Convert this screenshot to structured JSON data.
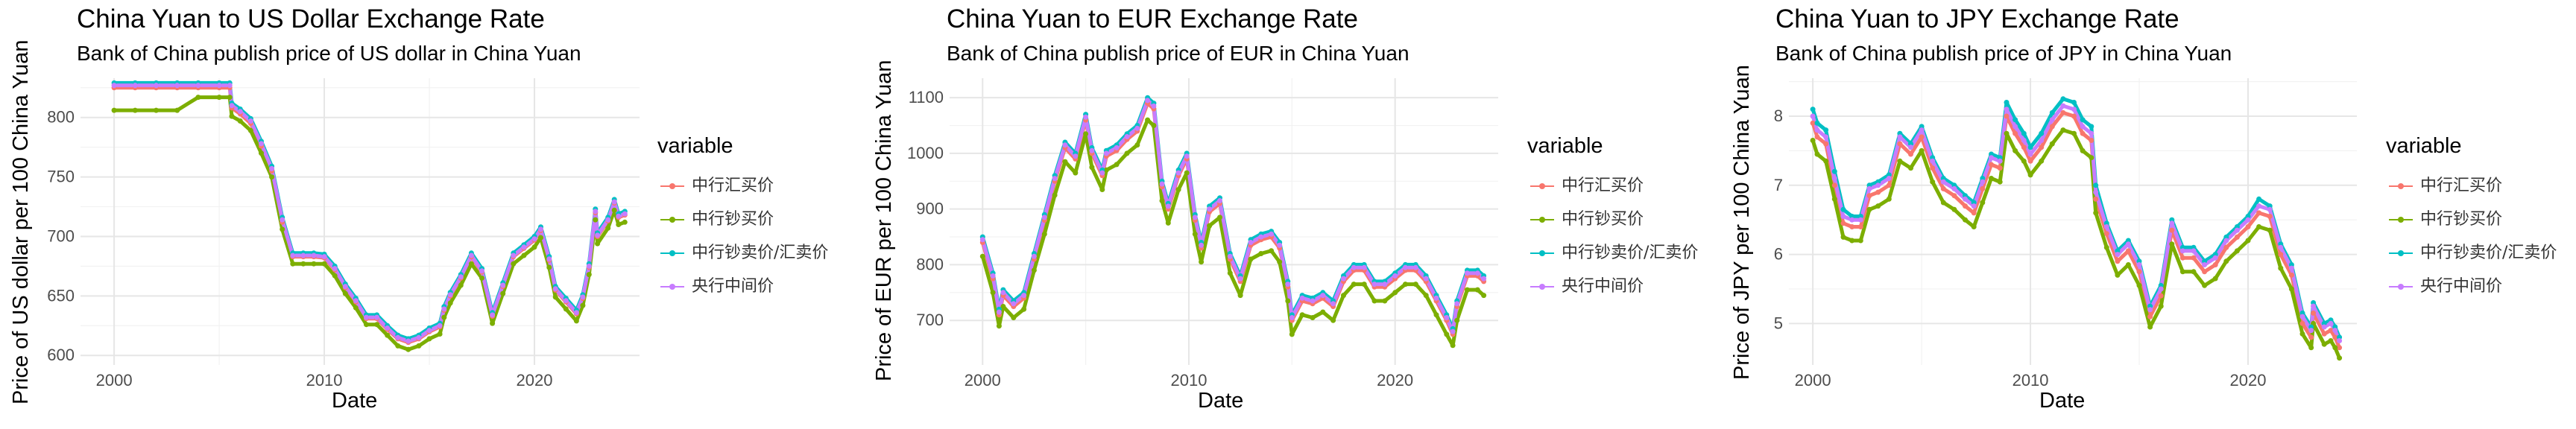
{
  "chart_data": [
    {
      "type": "line",
      "title": "China Yuan to US Dollar Exchange Rate",
      "subtitle": "Bank of China publish price of US dollar in China Yuan",
      "xlabel": "Date",
      "ylabel": "Price of US dollar per 100 China Yuan",
      "xlim": [
        1998.4,
        2025.0
      ],
      "ylim": [
        592,
        833
      ],
      "xticks": [
        2000,
        2010,
        2020
      ],
      "yticks": [
        600,
        650,
        700,
        750,
        800
      ],
      "grid": true,
      "legend": {
        "title": "variable",
        "position": "right"
      },
      "x": [
        2000.0,
        2001.0,
        2002.0,
        2003.0,
        2004.0,
        2005.0,
        2005.5,
        2005.6,
        2006.0,
        2006.5,
        2007.0,
        2007.5,
        2008.0,
        2008.5,
        2009.0,
        2009.5,
        2010.0,
        2010.5,
        2011.0,
        2011.5,
        2012.0,
        2012.5,
        2013.0,
        2013.5,
        2014.0,
        2014.5,
        2015.0,
        2015.5,
        2015.7,
        2016.0,
        2016.5,
        2017.0,
        2017.5,
        2018.0,
        2018.5,
        2019.0,
        2019.5,
        2020.0,
        2020.3,
        2020.7,
        2021.0,
        2021.5,
        2022.0,
        2022.3,
        2022.6,
        2022.9,
        2023.0,
        2023.5,
        2023.8,
        2024.0,
        2024.3
      ],
      "series": [
        {
          "name": "中行汇买价",
          "color": "#F8766D",
          "values": [
            825,
            825,
            825,
            825,
            825,
            825,
            825,
            808,
            803,
            795,
            776,
            755,
            712,
            683,
            683,
            683,
            682,
            672,
            657,
            645,
            631,
            631,
            622,
            614,
            611,
            614,
            620,
            624,
            638,
            650,
            665,
            683,
            670,
            633,
            658,
            683,
            690,
            697,
            705,
            680,
            655,
            645,
            635,
            648,
            674,
            720,
            700,
            713,
            728,
            716,
            718
          ]
        },
        {
          "name": "中行钞买价",
          "color": "#7CAE00",
          "values": [
            806,
            806,
            806,
            806,
            817,
            817,
            817,
            801,
            797,
            789,
            770,
            750,
            706,
            677,
            677,
            677,
            677,
            667,
            652,
            640,
            626,
            626,
            617,
            608,
            605,
            608,
            614,
            618,
            632,
            644,
            659,
            677,
            665,
            627,
            652,
            677,
            684,
            691,
            699,
            674,
            649,
            639,
            629,
            642,
            668,
            714,
            694,
            707,
            722,
            710,
            712
          ]
        },
        {
          "name": "中行钞卖价/汇卖价",
          "color": "#00BFC4",
          "values": [
            829,
            829,
            829,
            829,
            829,
            829,
            829,
            812,
            807,
            799,
            780,
            759,
            716,
            686,
            686,
            686,
            685,
            675,
            660,
            648,
            634,
            634,
            625,
            617,
            614,
            617,
            623,
            627,
            641,
            653,
            668,
            686,
            673,
            636,
            661,
            686,
            693,
            700,
            708,
            683,
            658,
            648,
            638,
            651,
            677,
            723,
            703,
            716,
            731,
            719,
            721
          ]
        },
        {
          "name": "央行中间价",
          "color": "#C77CFF",
          "values": [
            827,
            827,
            827,
            827,
            827,
            827,
            827,
            810,
            805,
            797,
            778,
            757,
            714,
            684,
            684,
            684,
            683,
            673,
            658,
            646,
            632,
            632,
            623,
            615,
            612,
            615,
            621,
            625,
            639,
            651,
            666,
            684,
            671,
            634,
            659,
            684,
            691,
            698,
            706,
            681,
            656,
            646,
            636,
            649,
            675,
            721,
            701,
            714,
            729,
            717,
            719
          ]
        }
      ]
    },
    {
      "type": "line",
      "title": "China Yuan to EUR Exchange Rate",
      "subtitle": "Bank of China publish price of EUR in China Yuan",
      "xlabel": "Date",
      "ylabel": "Price of EUR per 100 China Yuan",
      "xlim": [
        1998.4,
        2025.0
      ],
      "ylim": [
        620,
        1135
      ],
      "xticks": [
        2000,
        2010,
        2020
      ],
      "yticks": [
        700,
        800,
        900,
        1000,
        1100
      ],
      "grid": true,
      "legend": {
        "title": "variable",
        "position": "right"
      },
      "x": [
        2000.0,
        2000.5,
        2000.8,
        2001.0,
        2001.5,
        2002.0,
        2002.5,
        2003.0,
        2003.5,
        2004.0,
        2004.5,
        2005.0,
        2005.3,
        2005.8,
        2006.0,
        2006.5,
        2007.0,
        2007.5,
        2008.0,
        2008.3,
        2008.7,
        2009.0,
        2009.5,
        2009.9,
        2010.3,
        2010.6,
        2011.0,
        2011.5,
        2012.0,
        2012.5,
        2013.0,
        2013.5,
        2014.0,
        2014.4,
        2014.8,
        2015.0,
        2015.5,
        2016.0,
        2016.5,
        2017.0,
        2017.5,
        2018.0,
        2018.5,
        2019.0,
        2019.5,
        2020.0,
        2020.5,
        2021.0,
        2021.5,
        2022.0,
        2022.5,
        2022.8,
        2023.0,
        2023.5,
        2024.0,
        2024.3
      ],
      "series": [
        {
          "name": "中行汇买价",
          "color": "#F8766D",
          "values": [
            840,
            775,
            710,
            745,
            725,
            740,
            810,
            880,
            950,
            1010,
            990,
            1060,
            1000,
            960,
            995,
            1005,
            1025,
            1040,
            1090,
            1080,
            940,
            900,
            960,
            990,
            880,
            830,
            895,
            910,
            810,
            770,
            835,
            845,
            850,
            830,
            760,
            700,
            735,
            730,
            740,
            725,
            770,
            790,
            790,
            760,
            760,
            775,
            790,
            790,
            770,
            735,
            700,
            675,
            725,
            780,
            780,
            770
          ]
        },
        {
          "name": "中行钞买价",
          "color": "#7CAE00",
          "values": [
            815,
            750,
            690,
            725,
            705,
            720,
            790,
            855,
            925,
            985,
            965,
            1035,
            975,
            935,
            970,
            980,
            1000,
            1015,
            1060,
            1050,
            915,
            875,
            935,
            965,
            855,
            805,
            870,
            885,
            785,
            745,
            810,
            820,
            825,
            805,
            735,
            675,
            710,
            705,
            715,
            700,
            745,
            765,
            765,
            735,
            735,
            750,
            765,
            765,
            745,
            710,
            675,
            655,
            700,
            755,
            755,
            745
          ]
        },
        {
          "name": "中行钞卖价/汇卖价",
          "color": "#00BFC4",
          "values": [
            850,
            785,
            720,
            755,
            735,
            750,
            820,
            890,
            960,
            1020,
            1000,
            1070,
            1010,
            970,
            1005,
            1015,
            1035,
            1050,
            1100,
            1090,
            950,
            910,
            970,
            1000,
            890,
            840,
            905,
            920,
            820,
            780,
            845,
            855,
            860,
            840,
            770,
            710,
            745,
            740,
            750,
            735,
            780,
            800,
            800,
            770,
            770,
            785,
            800,
            800,
            780,
            745,
            710,
            685,
            735,
            790,
            790,
            780
          ]
        },
        {
          "name": "央行中间价",
          "color": "#C77CFF",
          "values": [
            845,
            780,
            715,
            750,
            730,
            745,
            815,
            885,
            955,
            1015,
            995,
            1065,
            1005,
            965,
            1000,
            1010,
            1030,
            1045,
            1095,
            1085,
            945,
            905,
            965,
            995,
            885,
            835,
            900,
            915,
            815,
            775,
            840,
            850,
            855,
            835,
            765,
            705,
            740,
            735,
            745,
            730,
            775,
            795,
            795,
            765,
            765,
            780,
            795,
            795,
            775,
            740,
            705,
            680,
            730,
            785,
            785,
            775
          ]
        }
      ]
    },
    {
      "type": "line",
      "title": "China Yuan to JPY Exchange Rate",
      "subtitle": "Bank of China publish price of JPY in China Yuan",
      "xlabel": "Date",
      "ylabel": "Price of JPY per 100 China Yuan",
      "xlim": [
        1998.9,
        2025.0
      ],
      "ylim": [
        4.4,
        8.55
      ],
      "xticks": [
        2000,
        2010,
        2020
      ],
      "yticks": [
        5,
        6,
        7,
        8
      ],
      "grid": true,
      "legend": {
        "title": "variable",
        "position": "right"
      },
      "x": [
        2000.0,
        2000.2,
        2000.6,
        2001.0,
        2001.4,
        2001.8,
        2002.2,
        2002.6,
        2003.0,
        2003.5,
        2004.0,
        2004.5,
        2005.0,
        2005.5,
        2006.0,
        2006.5,
        2007.0,
        2007.4,
        2007.8,
        2008.2,
        2008.6,
        2008.9,
        2009.3,
        2009.7,
        2010.0,
        2010.5,
        2011.0,
        2011.5,
        2012.0,
        2012.4,
        2012.8,
        2013.0,
        2013.5,
        2014.0,
        2014.5,
        2015.0,
        2015.5,
        2016.0,
        2016.5,
        2017.0,
        2017.5,
        2018.0,
        2018.5,
        2019.0,
        2019.5,
        2020.0,
        2020.5,
        2021.0,
        2021.5,
        2022.0,
        2022.5,
        2022.9,
        2023.0,
        2023.5,
        2023.8,
        2024.0,
        2024.2
      ],
      "series": [
        {
          "name": "中行汇买价",
          "color": "#F8766D",
          "values": [
            7.9,
            7.7,
            7.6,
            7.0,
            6.45,
            6.4,
            6.4,
            6.85,
            6.9,
            7.0,
            7.6,
            7.45,
            7.7,
            7.25,
            6.95,
            6.85,
            6.7,
            6.6,
            6.95,
            7.3,
            7.25,
            8.0,
            7.75,
            7.55,
            7.35,
            7.55,
            7.85,
            8.05,
            8.0,
            7.75,
            7.65,
            6.8,
            6.3,
            5.9,
            6.05,
            5.75,
            5.1,
            5.4,
            6.35,
            5.95,
            5.95,
            5.75,
            5.85,
            6.1,
            6.25,
            6.4,
            6.6,
            6.55,
            6.0,
            5.7,
            5.0,
            4.8,
            5.15,
            4.85,
            4.9,
            4.8,
            4.65
          ]
        },
        {
          "name": "中行钞买价",
          "color": "#7CAE00",
          "values": [
            7.65,
            7.45,
            7.35,
            6.8,
            6.25,
            6.2,
            6.2,
            6.65,
            6.7,
            6.8,
            7.35,
            7.25,
            7.5,
            7.05,
            6.75,
            6.65,
            6.5,
            6.4,
            6.75,
            7.1,
            7.05,
            7.75,
            7.5,
            7.35,
            7.15,
            7.35,
            7.6,
            7.8,
            7.75,
            7.5,
            7.4,
            6.6,
            6.1,
            5.7,
            5.85,
            5.55,
            4.95,
            5.25,
            6.15,
            5.75,
            5.75,
            5.55,
            5.65,
            5.9,
            6.05,
            6.2,
            6.4,
            6.35,
            5.8,
            5.5,
            4.85,
            4.65,
            5.0,
            4.7,
            4.75,
            4.65,
            4.5
          ]
        },
        {
          "name": "中行钞卖价/汇卖价",
          "color": "#00BFC4",
          "values": [
            8.1,
            7.9,
            7.8,
            7.2,
            6.65,
            6.55,
            6.55,
            7.0,
            7.05,
            7.15,
            7.75,
            7.6,
            7.85,
            7.4,
            7.1,
            7.0,
            6.85,
            6.75,
            7.1,
            7.45,
            7.4,
            8.2,
            7.95,
            7.75,
            7.55,
            7.75,
            8.05,
            8.25,
            8.2,
            7.95,
            7.85,
            7.0,
            6.45,
            6.05,
            6.2,
            5.9,
            5.25,
            5.55,
            6.5,
            6.1,
            6.1,
            5.9,
            6.0,
            6.25,
            6.4,
            6.55,
            6.8,
            6.7,
            6.15,
            5.85,
            5.15,
            4.95,
            5.3,
            5.0,
            5.05,
            4.95,
            4.8
          ]
        },
        {
          "name": "央行中间价",
          "color": "#C77CFF",
          "values": [
            8.0,
            7.8,
            7.7,
            7.1,
            6.55,
            6.5,
            6.5,
            6.95,
            7.0,
            7.1,
            7.7,
            7.55,
            7.8,
            7.35,
            7.05,
            6.95,
            6.8,
            6.7,
            7.05,
            7.4,
            7.35,
            8.1,
            7.85,
            7.65,
            7.45,
            7.65,
            7.95,
            8.15,
            8.1,
            7.85,
            7.75,
            6.9,
            6.4,
            6.0,
            6.15,
            5.85,
            5.2,
            5.5,
            6.45,
            6.05,
            6.05,
            5.85,
            5.95,
            6.2,
            6.35,
            6.5,
            6.7,
            6.65,
            6.1,
            5.8,
            5.1,
            4.9,
            5.25,
            4.95,
            5.0,
            4.9,
            4.75
          ]
        }
      ]
    }
  ]
}
